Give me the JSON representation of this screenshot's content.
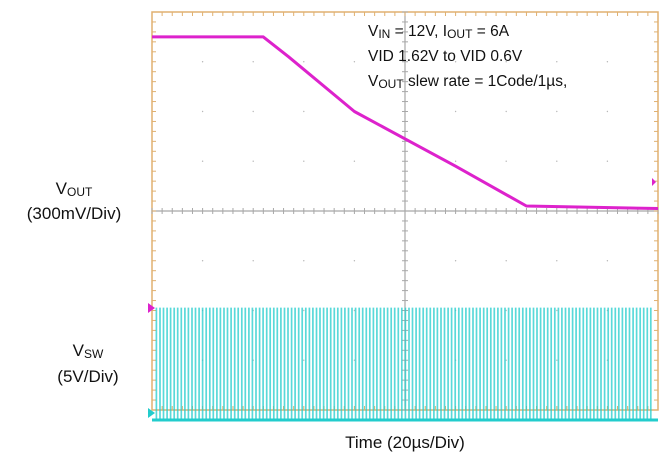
{
  "chart_data": {
    "type": "line",
    "xlabel": "Time (20µs/Div)",
    "x_division": "20µs/Div",
    "x_divisions": 10,
    "series": [
      {
        "label_main": "V",
        "label_sub": "OUT",
        "scale": "(300mV/Div)",
        "color": "#dd22cc",
        "unit": "divisions_from_center",
        "points": [
          [
            0,
            3.5
          ],
          [
            2.2,
            3.5
          ],
          [
            2.7,
            3.1
          ],
          [
            4.0,
            2.0
          ],
          [
            6.0,
            0.9
          ],
          [
            7.4,
            0.1
          ],
          [
            10,
            0.05
          ]
        ]
      },
      {
        "label_main": "V",
        "label_sub": "SW",
        "scale": "(5V/Div)",
        "color": "#22cccc",
        "unit": "divisions_from_center",
        "low_level": -4.2,
        "high_level": -1.95,
        "switching": true,
        "pulse_count": 140
      }
    ],
    "grid": true
  },
  "annotations": {
    "line1": {
      "v": "V",
      "vin_sub": "IN",
      "eq1": " = 12V, I",
      "iout_sub": "OUT",
      "eq2": " = 6A"
    },
    "line2": "VID 1.62V to VID 0.6V",
    "line3": {
      "v": "V",
      "vout_sub": "OUT",
      "text": " slew rate  =  1Code/1µs,"
    }
  }
}
